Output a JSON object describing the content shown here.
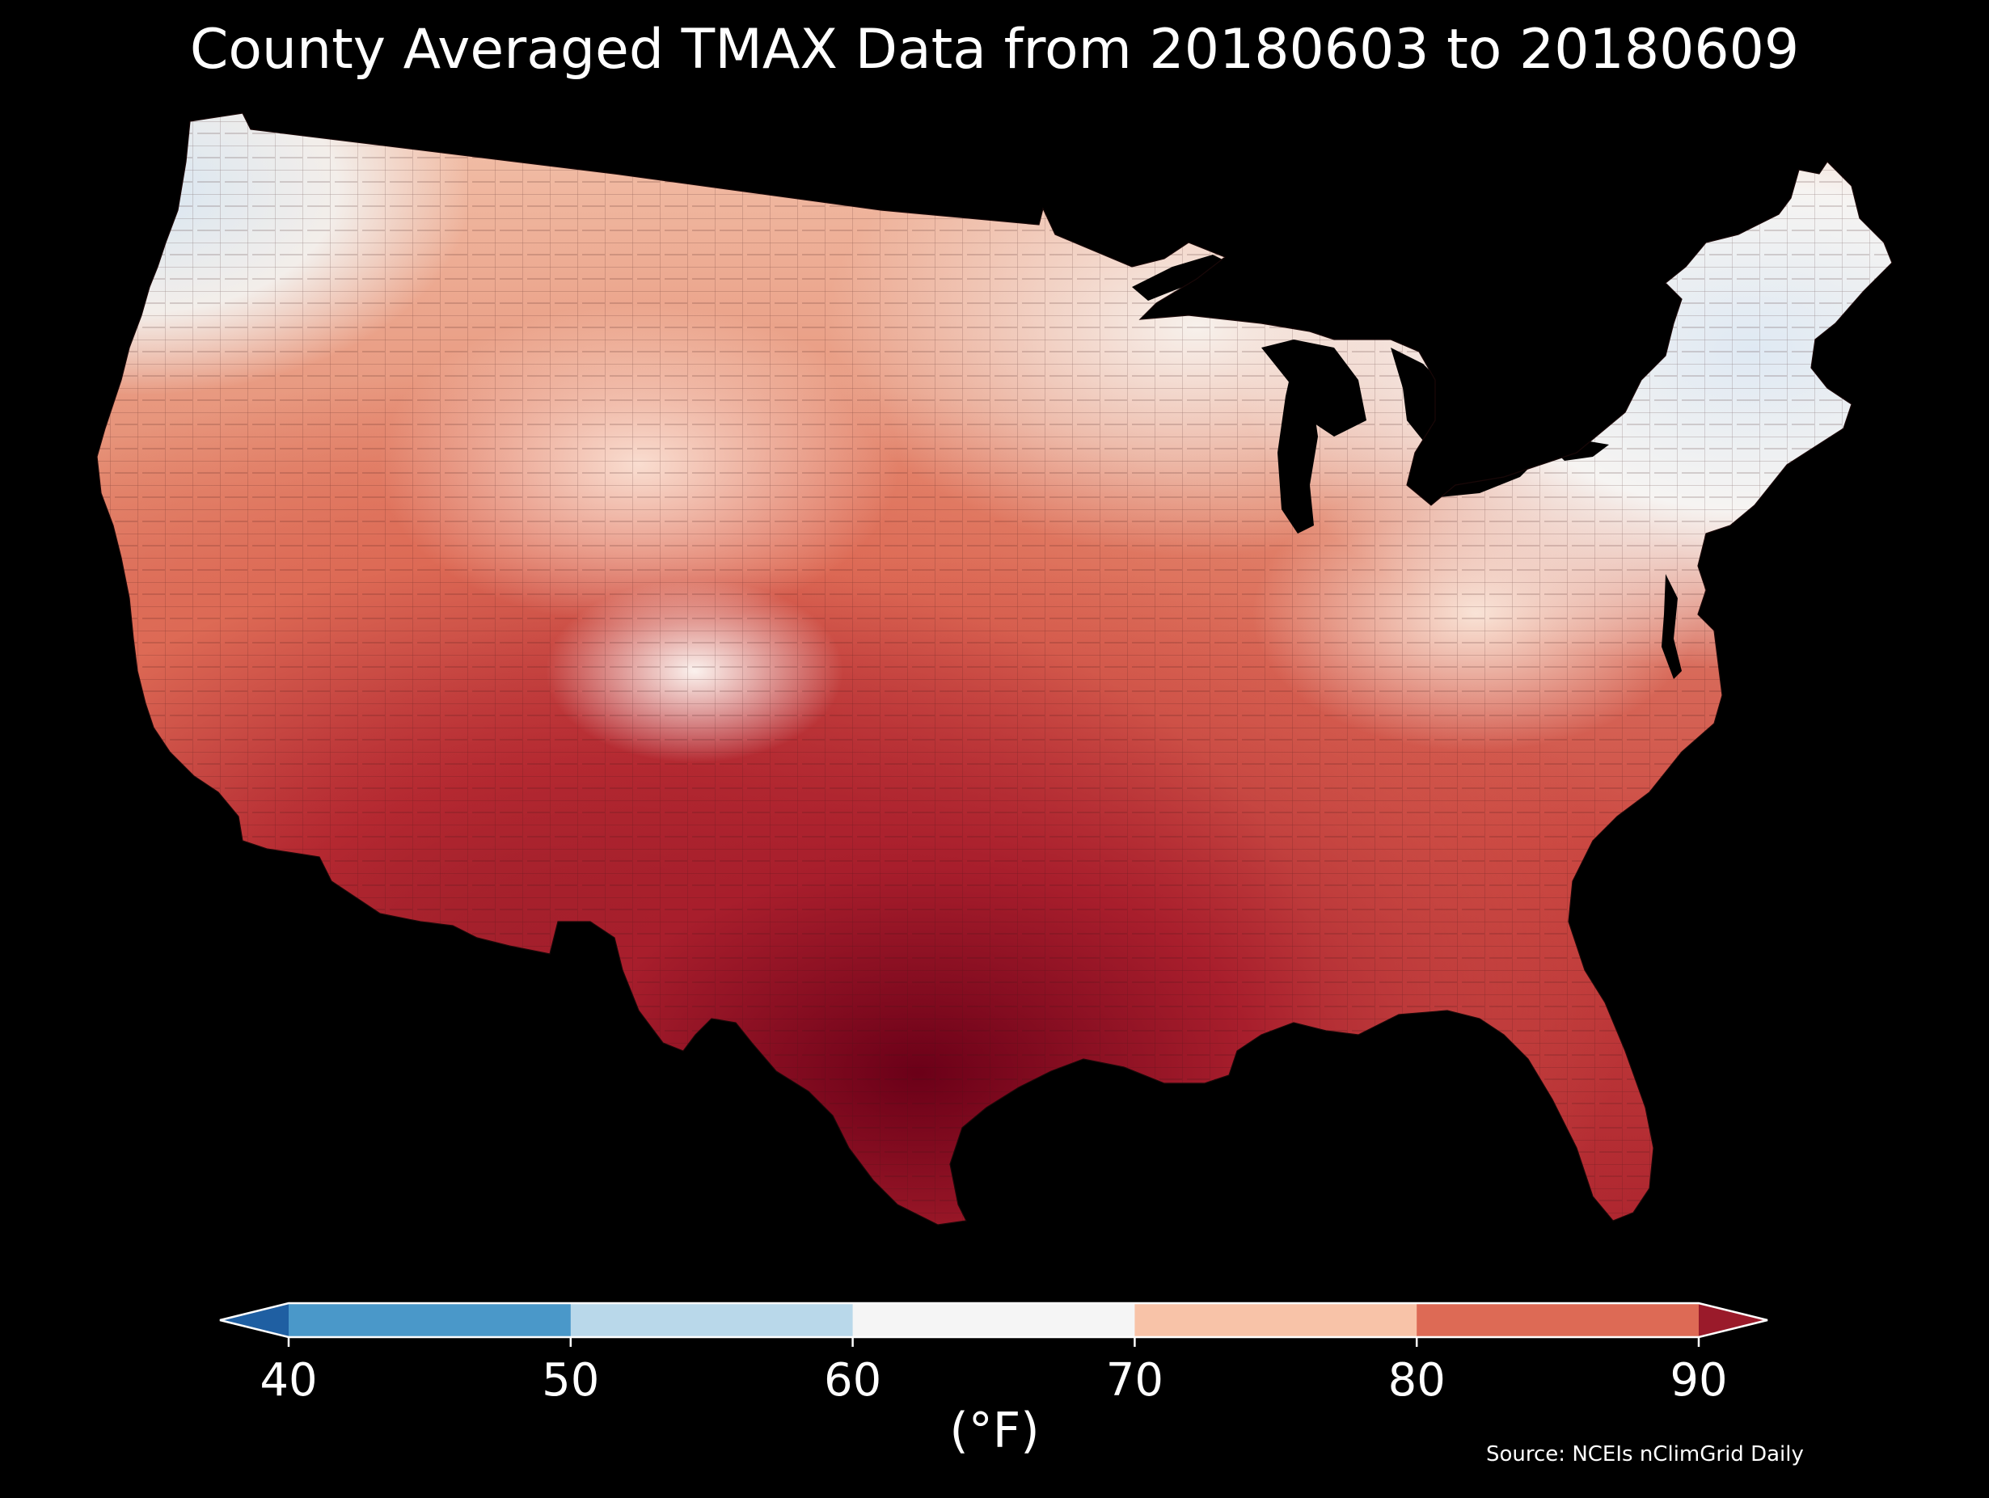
{
  "title": "County Averaged TMAX Data from 20180603 to 20180609",
  "source": "Source: NCEIs nClimGrid Daily",
  "colorbar": {
    "units": "(°F)",
    "ticks": [
      "40",
      "50",
      "60",
      "70",
      "80",
      "90"
    ],
    "bins": [
      {
        "from": null,
        "to": 40,
        "color": "#1f5fa2"
      },
      {
        "from": 40,
        "to": 50,
        "color": "#4a98c9"
      },
      {
        "from": 50,
        "to": 60,
        "color": "#b9d8ea"
      },
      {
        "from": 60,
        "to": 70,
        "color": "#f5f5f5"
      },
      {
        "from": 70,
        "to": 80,
        "color": "#f8c3a8"
      },
      {
        "from": 80,
        "to": 90,
        "color": "#dd6a55"
      },
      {
        "from": 90,
        "to": null,
        "color": "#9a1a2a"
      }
    ]
  },
  "colors": {
    "background": "#000000",
    "county_border": "#2a1010",
    "water": "#000000"
  }
}
